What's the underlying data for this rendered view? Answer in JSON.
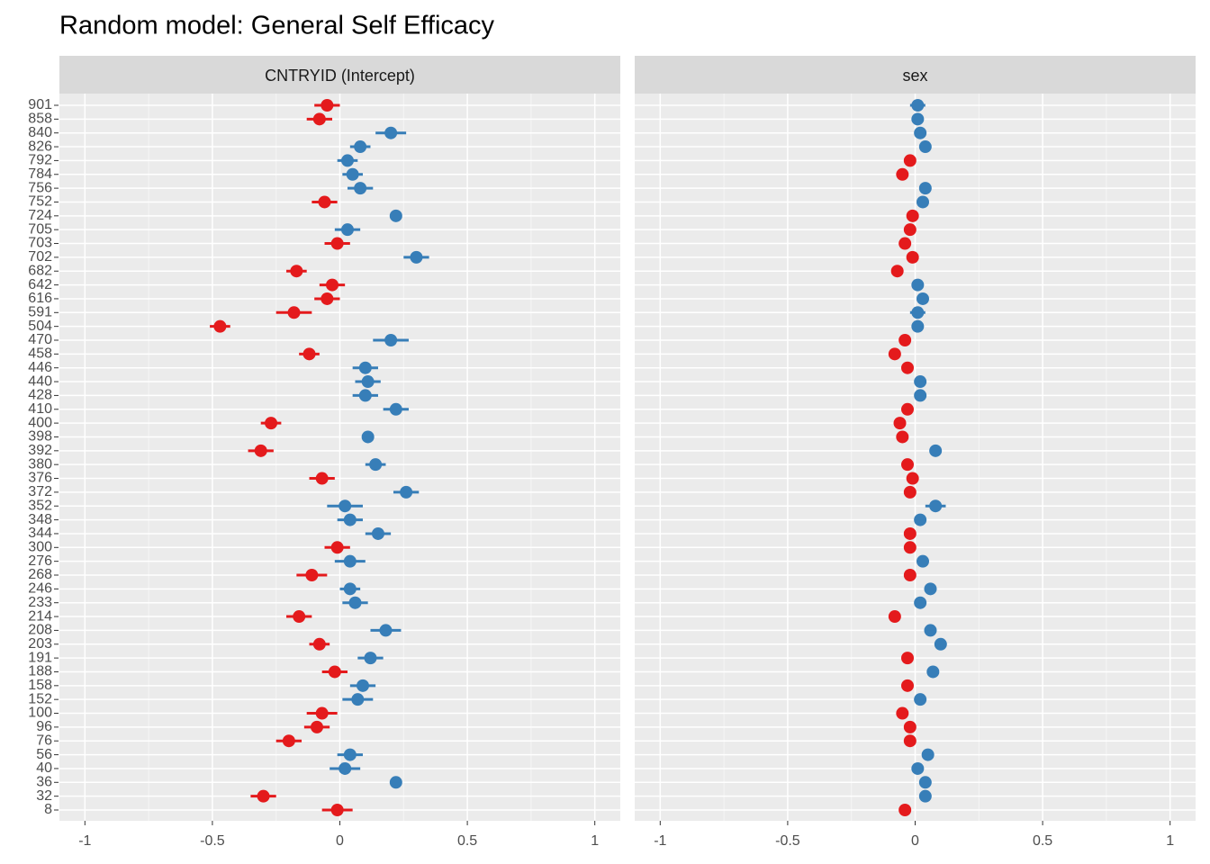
{
  "title": "Random model: General Self Efficacy",
  "chart_data": [
    {
      "type": "dotplot",
      "strip": "CNTRYID (Intercept)",
      "categories": [
        "901",
        "858",
        "840",
        "826",
        "792",
        "784",
        "756",
        "752",
        "724",
        "705",
        "703",
        "702",
        "682",
        "642",
        "616",
        "591",
        "504",
        "470",
        "458",
        "446",
        "440",
        "428",
        "410",
        "400",
        "398",
        "392",
        "380",
        "376",
        "372",
        "352",
        "348",
        "344",
        "300",
        "276",
        "268",
        "246",
        "233",
        "214",
        "208",
        "203",
        "191",
        "188",
        "158",
        "152",
        "100",
        "96",
        "76",
        "56",
        "40",
        "36",
        "32",
        "8"
      ],
      "values": [
        -0.05,
        -0.08,
        0.2,
        0.08,
        0.03,
        0.05,
        0.08,
        -0.06,
        0.22,
        0.03,
        -0.01,
        0.3,
        -0.17,
        -0.03,
        -0.05,
        -0.18,
        -0.47,
        0.2,
        -0.12,
        0.1,
        0.11,
        0.1,
        0.22,
        -0.27,
        0.11,
        -0.31,
        0.14,
        -0.07,
        0.26,
        0.02,
        0.04,
        0.15,
        -0.01,
        0.04,
        -0.11,
        0.04,
        0.06,
        -0.16,
        0.18,
        -0.08,
        0.12,
        -0.02,
        0.09,
        0.07,
        -0.07,
        -0.09,
        -0.2,
        0.04,
        0.02,
        0.22,
        -0.3,
        -0.01
      ],
      "errors": [
        0.05,
        0.05,
        0.06,
        0.04,
        0.04,
        0.04,
        0.05,
        0.05,
        0.01,
        0.05,
        0.05,
        0.05,
        0.04,
        0.05,
        0.05,
        0.07,
        0.04,
        0.07,
        0.04,
        0.05,
        0.05,
        0.05,
        0.05,
        0.04,
        0.01,
        0.05,
        0.04,
        0.05,
        0.05,
        0.07,
        0.05,
        0.05,
        0.05,
        0.06,
        0.06,
        0.04,
        0.05,
        0.05,
        0.06,
        0.04,
        0.05,
        0.05,
        0.05,
        0.06,
        0.06,
        0.05,
        0.05,
        0.05,
        0.06,
        0.02,
        0.05,
        0.06
      ],
      "colors": {
        "negative": "#e41a1c",
        "positive": "#377eb8"
      },
      "xlim": [
        -1.1,
        1.1
      ],
      "xticks": [
        -1,
        -0.5,
        0,
        0.5,
        1
      ],
      "grid": true
    },
    {
      "type": "dotplot",
      "strip": "sex",
      "values": [
        0.01,
        0.01,
        0.02,
        0.04,
        -0.02,
        -0.05,
        0.04,
        0.03,
        -0.01,
        -0.02,
        -0.04,
        -0.01,
        -0.07,
        0.01,
        0.03,
        0.01,
        0.01,
        -0.04,
        -0.08,
        -0.03,
        0.02,
        0.02,
        -0.03,
        -0.06,
        -0.05,
        0.08,
        -0.03,
        -0.01,
        -0.02,
        0.08,
        0.02,
        -0.02,
        -0.02,
        0.03,
        -0.02,
        0.06,
        0.02,
        -0.08,
        0.06,
        0.1,
        -0.03,
        0.07,
        -0.03,
        0.02,
        -0.05,
        -0.02,
        -0.02,
        0.05,
        0.01,
        0.04,
        0.04,
        -0.04
      ],
      "errors": [
        0.03,
        0.02,
        0.02,
        0.01,
        0.02,
        0.02,
        0.02,
        0.02,
        0.02,
        0.02,
        0.02,
        0.02,
        0.02,
        0.02,
        0.02,
        0.03,
        0.02,
        0.02,
        0.02,
        0.02,
        0.02,
        0.02,
        0.02,
        0.02,
        0.02,
        0.02,
        0.02,
        0.02,
        0.02,
        0.04,
        0.02,
        0.02,
        0.02,
        0.02,
        0.02,
        0.02,
        0.02,
        0.02,
        0.02,
        0.02,
        0.02,
        0.02,
        0.02,
        0.02,
        0.02,
        0.02,
        0.02,
        0.02,
        0.02,
        0.02,
        0.02,
        0.02
      ],
      "colors": {
        "negative": "#e41a1c",
        "positive": "#377eb8"
      },
      "xlim": [
        -1.1,
        1.1
      ],
      "xticks": [
        -1,
        -0.5,
        0,
        0.5,
        1
      ],
      "grid": true
    }
  ]
}
